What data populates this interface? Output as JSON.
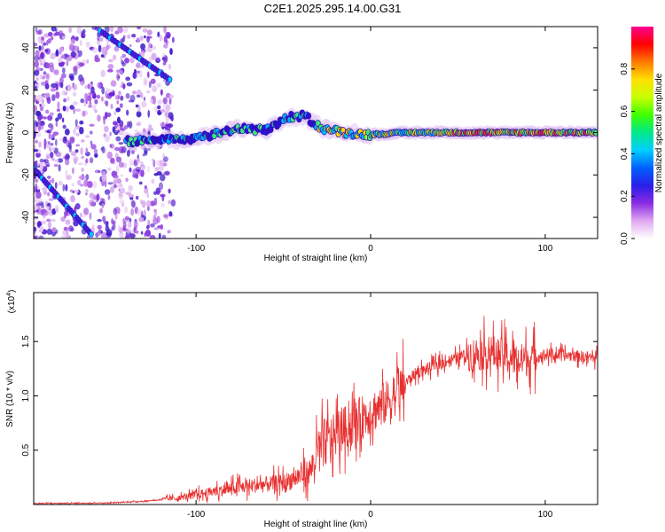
{
  "title": "C2E1.2025.295.14.00.G31",
  "chart_data": [
    {
      "type": "heatmap",
      "xlabel": "Height of straight line (km)",
      "ylabel": "Frequency (Hz)",
      "xlim": [
        -193,
        130
      ],
      "ylim": [
        -50,
        50
      ],
      "x_ticks": [
        -100,
        0,
        100
      ],
      "y_ticks": [
        40,
        20,
        0,
        -20,
        -40
      ],
      "colorbar": {
        "label": "Normalized spectral amplitude",
        "range": [
          0,
          1
        ],
        "ticks": [
          "0.0",
          "0.2",
          "0.4",
          "0.6",
          "0.8"
        ],
        "colors": [
          "#ffffff",
          "#e0a8f0",
          "#8a2be2",
          "#2a1ee8",
          "#0060ff",
          "#00d0ff",
          "#00e88a",
          "#40ff00",
          "#c8ff00",
          "#ffe000",
          "#ff7a00",
          "#ff0000",
          "#ff0090"
        ]
      },
      "signal_track": [
        {
          "x": -135,
          "y": -4
        },
        {
          "x": -120,
          "y": -3
        },
        {
          "x": -105,
          "y": -4
        },
        {
          "x": -90,
          "y": -1
        },
        {
          "x": -75,
          "y": 2
        },
        {
          "x": -60,
          "y": 1
        },
        {
          "x": -48,
          "y": 7
        },
        {
          "x": -38,
          "y": 8
        },
        {
          "x": -28,
          "y": 2
        },
        {
          "x": -15,
          "y": 0
        },
        {
          "x": 0,
          "y": -1
        },
        {
          "x": 20,
          "y": 0
        },
        {
          "x": 40,
          "y": 0
        },
        {
          "x": 80,
          "y": 0
        },
        {
          "x": 130,
          "y": 0
        }
      ]
    },
    {
      "type": "line",
      "xlabel": "Height of straight line (km)",
      "ylabel": "SNR (10 * v/v)",
      "exponent_label": "(x10",
      "exponent_power": "4",
      "exponent_close": ")",
      "xlim": [
        -193,
        130
      ],
      "ylim": [
        0,
        1.95
      ],
      "x_ticks": [
        -100,
        0,
        100
      ],
      "y_ticks": [
        0.5,
        1.0,
        1.5
      ],
      "y_tick_labels": [
        "0.5",
        "1.0",
        "1.5"
      ],
      "color": "#e83030",
      "envelope": [
        {
          "x": -193,
          "y": 0.01
        },
        {
          "x": -150,
          "y": 0.015
        },
        {
          "x": -130,
          "y": 0.03
        },
        {
          "x": -110,
          "y": 0.06
        },
        {
          "x": -90,
          "y": 0.12
        },
        {
          "x": -70,
          "y": 0.17
        },
        {
          "x": -50,
          "y": 0.2
        },
        {
          "x": -35,
          "y": 0.3
        },
        {
          "x": -28,
          "y": 0.55
        },
        {
          "x": -15,
          "y": 0.7
        },
        {
          "x": 0,
          "y": 0.85
        },
        {
          "x": 10,
          "y": 0.95
        },
        {
          "x": 25,
          "y": 1.2
        },
        {
          "x": 40,
          "y": 1.3
        },
        {
          "x": 55,
          "y": 1.38
        },
        {
          "x": 70,
          "y": 1.4
        },
        {
          "x": 85,
          "y": 1.32
        },
        {
          "x": 100,
          "y": 1.38
        },
        {
          "x": 115,
          "y": 1.37
        },
        {
          "x": 130,
          "y": 1.35
        }
      ]
    }
  ]
}
